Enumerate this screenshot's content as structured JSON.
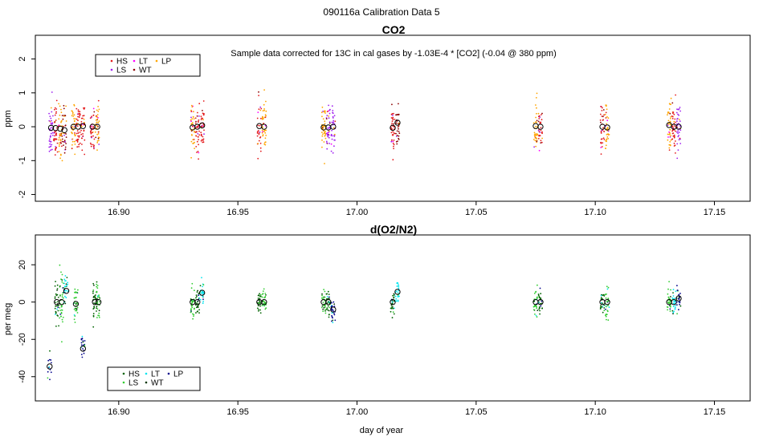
{
  "figure_title": "090116a   Calibration Data 5",
  "xlabel": "day of year",
  "chart_data": [
    {
      "type": "scatter",
      "title": "CO2",
      "ylabel": "ppm",
      "annotation": "Sample data corrected for 13C in cal gases by -1.03E-4 * [CO2] (-0.04 @ 380 ppm)",
      "xlim": [
        16.865,
        17.165
      ],
      "ylim": [
        -2.2,
        2.7
      ],
      "xticks": [
        16.9,
        16.95,
        17.0,
        17.05,
        17.1,
        17.15
      ],
      "xtick_labels": [
        "16.90",
        "16.95",
        "17.00",
        "17.05",
        "17.10",
        "17.15"
      ],
      "yticks": [
        -2,
        -1,
        0,
        1,
        2
      ],
      "ytick_labels": [
        "-2",
        "-1",
        "0",
        "1",
        "2"
      ],
      "legend": [
        {
          "label": "HS",
          "color": "#e41a1c"
        },
        {
          "label": "LT",
          "color": "#ff00ff"
        },
        {
          "label": "LP",
          "color": "#ffa500"
        },
        {
          "label": "LS",
          "color": "#a020f0"
        },
        {
          "label": "WT",
          "color": "#8b0000"
        }
      ],
      "groups": [
        {
          "x": 16.8716,
          "series": "LS",
          "mean": -0.03,
          "spread": 1.3,
          "n": 40
        },
        {
          "x": 16.8735,
          "series": "HS",
          "mean": -0.04,
          "spread": 1.4,
          "n": 40
        },
        {
          "x": 16.8755,
          "series": "LP",
          "mean": -0.06,
          "spread": 1.4,
          "n": 40
        },
        {
          "x": 16.8772,
          "series": "WT",
          "mean": -0.1,
          "spread": 1.2,
          "n": 30
        },
        {
          "x": 16.881,
          "series": "LP",
          "mean": 0.0,
          "spread": 1.3,
          "n": 40
        },
        {
          "x": 16.883,
          "series": "HS",
          "mean": 0.0,
          "spread": 1.2,
          "n": 40
        },
        {
          "x": 16.885,
          "series": "HS",
          "mean": 0.02,
          "spread": 1.2,
          "n": 30
        },
        {
          "x": 16.889,
          "series": "HS",
          "mean": 0.0,
          "spread": 1.1,
          "n": 35
        },
        {
          "x": 16.891,
          "series": "LP",
          "mean": 0.0,
          "spread": 1.3,
          "n": 40
        },
        {
          "x": 16.931,
          "series": "LP",
          "mean": -0.02,
          "spread": 1.3,
          "n": 40
        },
        {
          "x": 16.933,
          "series": "HS",
          "mean": 0.0,
          "spread": 1.2,
          "n": 35
        },
        {
          "x": 16.935,
          "series": "HS",
          "mean": 0.04,
          "spread": 1.2,
          "n": 35
        },
        {
          "x": 16.959,
          "series": "HS",
          "mean": 0.02,
          "spread": 1.3,
          "n": 30
        },
        {
          "x": 16.961,
          "series": "LP",
          "mean": 0.0,
          "spread": 1.2,
          "n": 40
        },
        {
          "x": 16.986,
          "series": "LP",
          "mean": -0.02,
          "spread": 1.2,
          "n": 40
        },
        {
          "x": 16.988,
          "series": "LS",
          "mean": -0.02,
          "spread": 1.2,
          "n": 35
        },
        {
          "x": 16.99,
          "series": "LS",
          "mean": 0.0,
          "spread": 1.2,
          "n": 35
        },
        {
          "x": 17.015,
          "series": "HS",
          "mean": -0.03,
          "spread": 1.3,
          "n": 40
        },
        {
          "x": 17.017,
          "series": "WT",
          "mean": 0.12,
          "spread": 1.3,
          "n": 30
        },
        {
          "x": 17.075,
          "series": "LP",
          "mean": 0.02,
          "spread": 1.2,
          "n": 35
        },
        {
          "x": 17.077,
          "series": "HS",
          "mean": 0.0,
          "spread": 1.2,
          "n": 30
        },
        {
          "x": 17.103,
          "series": "HS",
          "mean": 0.0,
          "spread": 1.3,
          "n": 35
        },
        {
          "x": 17.105,
          "series": "LP",
          "mean": -0.02,
          "spread": 1.3,
          "n": 35
        },
        {
          "x": 17.131,
          "series": "LP",
          "mean": 0.05,
          "spread": 1.3,
          "n": 40
        },
        {
          "x": 17.133,
          "series": "HS",
          "mean": 0.0,
          "spread": 1.3,
          "n": 40
        },
        {
          "x": 17.135,
          "series": "LS",
          "mean": 0.0,
          "spread": 1.3,
          "n": 35
        }
      ]
    },
    {
      "type": "scatter",
      "title": "d(O2/N2)",
      "ylabel": "per meg",
      "xlim": [
        16.865,
        17.165
      ],
      "ylim": [
        -53,
        36
      ],
      "xticks": [
        16.9,
        16.95,
        17.0,
        17.05,
        17.1,
        17.15
      ],
      "xtick_labels": [
        "16.90",
        "16.95",
        "17.00",
        "17.05",
        "17.10",
        "17.15"
      ],
      "yticks": [
        -40,
        -20,
        0,
        20
      ],
      "ytick_labels": [
        "-40",
        "-20",
        "0",
        "20"
      ],
      "legend": [
        {
          "label": "HS",
          "color": "#006400"
        },
        {
          "label": "LT",
          "color": "#00e5ee"
        },
        {
          "label": "LP",
          "color": "#00008b"
        },
        {
          "label": "LS",
          "color": "#32cd32"
        },
        {
          "label": "WT",
          "color": "#003300"
        }
      ],
      "groups": [
        {
          "x": 16.871,
          "series": "LP",
          "mean": -34.5,
          "spread": 18,
          "n": 12
        },
        {
          "x": 16.874,
          "series": "HS",
          "mean": 0.0,
          "spread": 22,
          "n": 30
        },
        {
          "x": 16.876,
          "series": "LS",
          "mean": 0.0,
          "spread": 30,
          "n": 40
        },
        {
          "x": 16.878,
          "series": "LT",
          "mean": 6.0,
          "spread": 12,
          "n": 25
        },
        {
          "x": 16.882,
          "series": "LS",
          "mean": -1.0,
          "spread": 16,
          "n": 35
        },
        {
          "x": 16.885,
          "series": "LP",
          "mean": -25.0,
          "spread": 12,
          "n": 20
        },
        {
          "x": 16.89,
          "series": "HS",
          "mean": 0.0,
          "spread": 16,
          "n": 35
        },
        {
          "x": 16.8915,
          "series": "LS",
          "mean": 0.0,
          "spread": 14,
          "n": 30
        },
        {
          "x": 16.931,
          "series": "LS",
          "mean": 0.0,
          "spread": 14,
          "n": 35
        },
        {
          "x": 16.933,
          "series": "HS",
          "mean": 0.0,
          "spread": 12,
          "n": 30
        },
        {
          "x": 16.935,
          "series": "LT",
          "mean": 5.0,
          "spread": 12,
          "n": 25
        },
        {
          "x": 16.959,
          "series": "HS",
          "mean": 0.0,
          "spread": 12,
          "n": 30
        },
        {
          "x": 16.961,
          "series": "LS",
          "mean": 0.0,
          "spread": 12,
          "n": 30
        },
        {
          "x": 16.986,
          "series": "LS",
          "mean": 0.0,
          "spread": 12,
          "n": 30
        },
        {
          "x": 16.988,
          "series": "HS",
          "mean": 0.0,
          "spread": 12,
          "n": 30
        },
        {
          "x": 16.99,
          "series": "LP",
          "mean": -4.0,
          "spread": 14,
          "n": 25
        },
        {
          "x": 17.015,
          "series": "HS",
          "mean": 0.0,
          "spread": 14,
          "n": 30
        },
        {
          "x": 17.017,
          "series": "LT",
          "mean": 5.5,
          "spread": 12,
          "n": 25
        },
        {
          "x": 17.075,
          "series": "LS",
          "mean": 0.0,
          "spread": 14,
          "n": 30
        },
        {
          "x": 17.077,
          "series": "HS",
          "mean": 0.0,
          "spread": 10,
          "n": 25
        },
        {
          "x": 17.103,
          "series": "HS",
          "mean": 0.0,
          "spread": 12,
          "n": 25
        },
        {
          "x": 17.105,
          "series": "LS",
          "mean": 0.0,
          "spread": 16,
          "n": 30
        },
        {
          "x": 17.131,
          "series": "LS",
          "mean": 0.0,
          "spread": 12,
          "n": 30
        },
        {
          "x": 17.133,
          "series": "LT",
          "mean": 0.0,
          "spread": 10,
          "n": 25
        },
        {
          "x": 17.135,
          "series": "LP",
          "mean": 2.0,
          "spread": 12,
          "n": 25
        }
      ]
    }
  ]
}
